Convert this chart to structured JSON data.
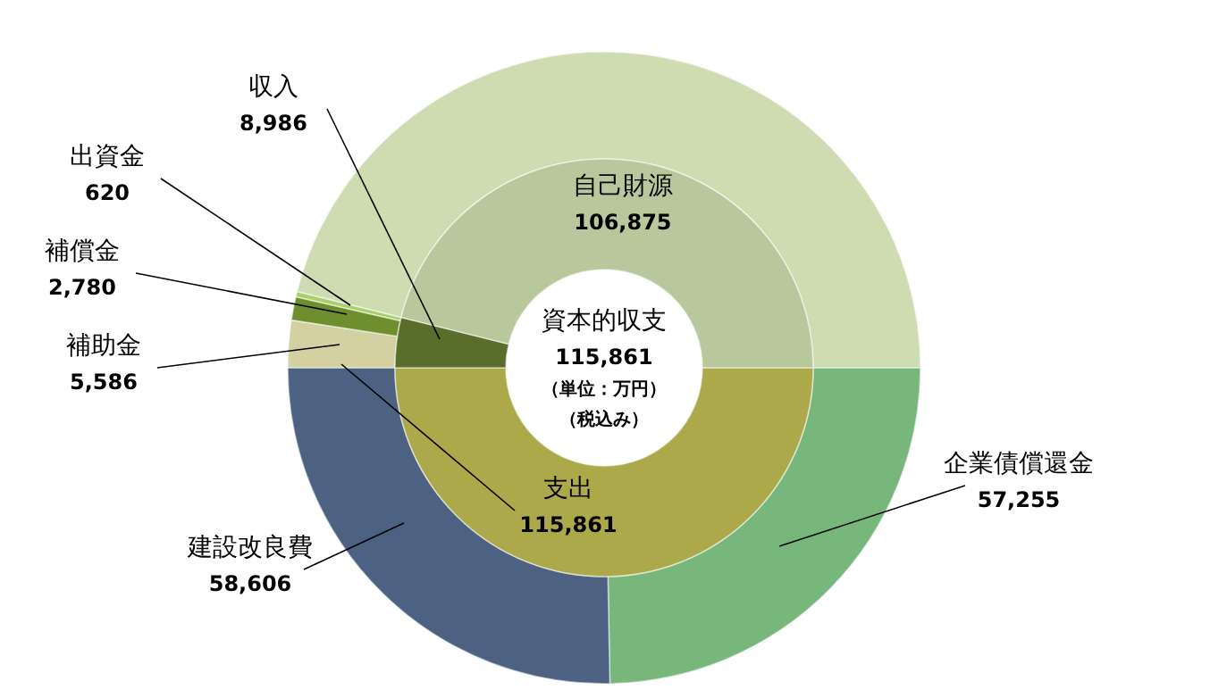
{
  "chart_data": [
    {
      "type": "donut",
      "title": "資本的収支",
      "annotations": [
        "115,861",
        "（単位：万円）",
        "（税込み）"
      ],
      "categories": [
        "支出",
        "収入",
        "自己財源"
      ],
      "values": [
        115861,
        8986,
        106875
      ],
      "colors": [
        "#aca94a",
        "#5a6e2c",
        "#b9c89c"
      ],
      "value_labels": [
        "115,861",
        "8,986",
        "106,875"
      ]
    },
    {
      "type": "donut",
      "categories": [
        "企業債償還金",
        "建設改良費",
        "補助金",
        "補償金",
        "出資金",
        null
      ],
      "values": [
        57255,
        58606,
        5586,
        2780,
        620,
        106875
      ],
      "colors": [
        "#78b77b",
        "#4d6283",
        "#d3d0a2",
        "#6f8f2e",
        "#a8d06a",
        "#cfdcb2"
      ],
      "value_labels": [
        "57,255",
        "58,606",
        "5,586",
        "2,780",
        "620",
        null
      ]
    }
  ]
}
